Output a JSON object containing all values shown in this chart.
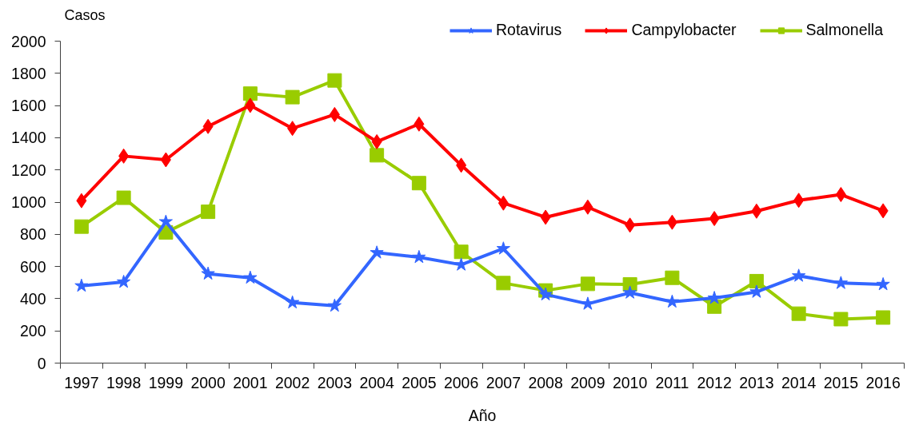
{
  "chart_data": {
    "type": "line",
    "xlabel": "Año",
    "ylabel": "Casos",
    "categories": [
      "1997",
      "1998",
      "1999",
      "2000",
      "2001",
      "2002",
      "2003",
      "2004",
      "2005",
      "2006",
      "2007",
      "2008",
      "2009",
      "2010",
      "2011",
      "2012",
      "2013",
      "2014",
      "2015",
      "2016"
    ],
    "series": [
      {
        "name": "Rotavirus",
        "color": "#3366ff",
        "marker": "star",
        "values": [
          480,
          504,
          878,
          555,
          530,
          376,
          356,
          686,
          658,
          611,
          711,
          426,
          368,
          437,
          381,
          404,
          442,
          542,
          497,
          489
        ]
      },
      {
        "name": "Campylobacter",
        "color": "#ff0000",
        "marker": "diamond",
        "values": [
          1009,
          1286,
          1263,
          1470,
          1601,
          1458,
          1544,
          1375,
          1485,
          1229,
          994,
          906,
          969,
          857,
          875,
          898,
          944,
          1011,
          1047,
          946
        ]
      },
      {
        "name": "Salmonella",
        "color": "#99cc00",
        "marker": "square",
        "values": [
          848,
          1027,
          812,
          940,
          1674,
          1652,
          1756,
          1291,
          1118,
          691,
          497,
          451,
          492,
          489,
          530,
          351,
          509,
          307,
          273,
          283
        ]
      }
    ],
    "ylim": [
      0,
      2000
    ],
    "yticks": [
      0,
      200,
      400,
      600,
      800,
      1000,
      1200,
      1400,
      1600,
      1800,
      2000
    ],
    "grid": false,
    "legend": "top right"
  }
}
